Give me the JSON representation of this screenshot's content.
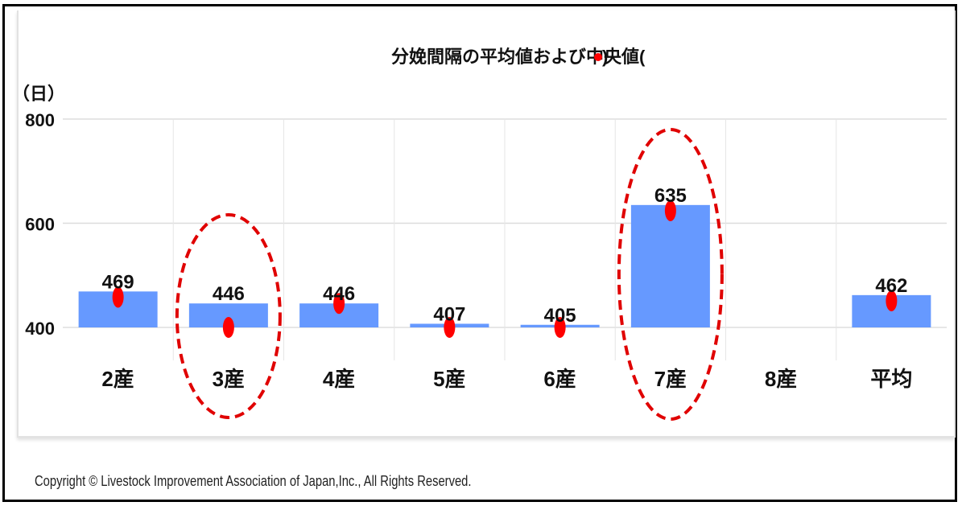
{
  "chart_data": {
    "type": "bar",
    "title": "分娩間隔の平均値および中央値(",
    "title_suffix": ")",
    "title_marker_color": "#ff0000",
    "ylabel": "（日）",
    "ylim": [
      400,
      800
    ],
    "yticks": [
      "400",
      "600",
      "800"
    ],
    "categories": [
      "2産",
      "3産",
      "4産",
      "5産",
      "6産",
      "7産",
      "8産",
      "平均"
    ],
    "series": [
      {
        "name": "",
        "type": "bar",
        "color": "#6699ff",
        "values": [
          469,
          446,
          446,
          407,
          405,
          635,
          null,
          462
        ],
        "labels": [
          "469",
          "446",
          "446",
          "407",
          "405",
          "635",
          "",
          "462"
        ]
      },
      {
        "name": "",
        "type": "scatter",
        "color": "#ff0000",
        "values": [
          458,
          400,
          446,
          400,
          400,
          624,
          null,
          451
        ]
      }
    ],
    "highlighted_categories": [
      "3産",
      "7産"
    ],
    "highlight_color": "#e00000",
    "grid": true,
    "legend": "none"
  },
  "footer": {
    "copyright": "Copyright © Livestock Improvement Association of Japan,Inc., All Rights Reserved."
  }
}
